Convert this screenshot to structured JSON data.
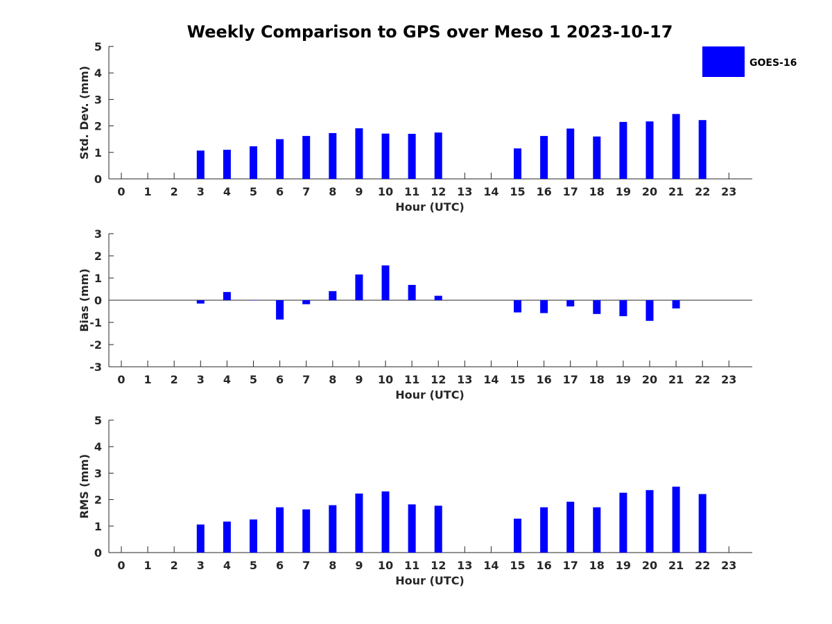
{
  "chart_data": [
    {
      "type": "bar",
      "title": "Weekly Comparison to GPS over Meso 1 2023-10-17",
      "xlabel": "Hour (UTC)",
      "ylabel": "Std. Dev. (mm)",
      "ylim": [
        0,
        5
      ],
      "yticks": [
        "0",
        "1",
        "2",
        "3",
        "4",
        "5"
      ],
      "categories": [
        "0",
        "1",
        "2",
        "3",
        "4",
        "5",
        "6",
        "7",
        "8",
        "9",
        "10",
        "11",
        "12",
        "13",
        "14",
        "15",
        "16",
        "17",
        "18",
        "19",
        "20",
        "21",
        "22",
        "23"
      ],
      "legend": {
        "position": "top-right",
        "entries": [
          "GOES-16"
        ]
      },
      "series": [
        {
          "name": "GOES-16",
          "color": "#0000ff",
          "values": [
            null,
            null,
            null,
            1.07,
            1.1,
            1.23,
            1.5,
            1.62,
            1.73,
            1.91,
            1.71,
            1.7,
            1.75,
            null,
            null,
            1.15,
            1.62,
            1.9,
            1.6,
            2.15,
            2.17,
            2.45,
            2.22,
            null
          ]
        }
      ]
    },
    {
      "type": "bar",
      "xlabel": "Hour (UTC)",
      "ylabel": "Bias (mm)",
      "ylim": [
        -3,
        3
      ],
      "yticks": [
        "-3",
        "-2",
        "-1",
        "0",
        "1",
        "2",
        "3"
      ],
      "zero_line": true,
      "categories": [
        "0",
        "1",
        "2",
        "3",
        "4",
        "5",
        "6",
        "7",
        "8",
        "9",
        "10",
        "11",
        "12",
        "13",
        "14",
        "15",
        "16",
        "17",
        "18",
        "19",
        "20",
        "21",
        "22",
        "23"
      ],
      "series": [
        {
          "name": "GOES-16",
          "color": "#0000ff",
          "values": [
            null,
            null,
            null,
            -0.15,
            0.37,
            0.0,
            -0.87,
            -0.18,
            0.41,
            1.16,
            1.57,
            0.69,
            0.2,
            null,
            null,
            -0.55,
            -0.58,
            -0.28,
            -0.62,
            -0.72,
            -0.93,
            -0.37,
            null,
            null
          ]
        }
      ]
    },
    {
      "type": "bar",
      "xlabel": "Hour (UTC)",
      "ylabel": "RMS (mm)",
      "ylim": [
        0,
        5
      ],
      "yticks": [
        "0",
        "1",
        "2",
        "3",
        "4",
        "5"
      ],
      "categories": [
        "0",
        "1",
        "2",
        "3",
        "4",
        "5",
        "6",
        "7",
        "8",
        "9",
        "10",
        "11",
        "12",
        "13",
        "14",
        "15",
        "16",
        "17",
        "18",
        "19",
        "20",
        "21",
        "22",
        "23"
      ],
      "series": [
        {
          "name": "GOES-16",
          "color": "#0000ff",
          "values": [
            null,
            null,
            null,
            1.06,
            1.17,
            1.25,
            1.71,
            1.63,
            1.79,
            2.23,
            2.31,
            1.82,
            1.77,
            null,
            null,
            1.28,
            1.71,
            1.92,
            1.71,
            2.26,
            2.36,
            2.49,
            2.21,
            null
          ]
        }
      ]
    }
  ]
}
